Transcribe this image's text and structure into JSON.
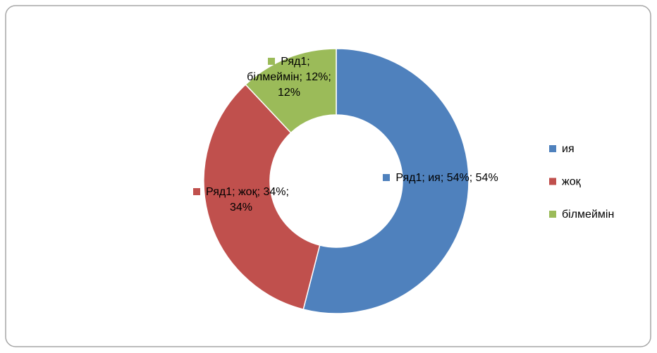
{
  "chart_data": {
    "type": "donut",
    "series_name": "Ряд1",
    "categories": [
      "ия",
      "жоқ",
      "білмеймін"
    ],
    "values": [
      54,
      34,
      12
    ],
    "value_labels": [
      "Ряд1; ия; 54%; 54%",
      "Ряд1; жоқ; 34%; 34%",
      "Ряд1; білмеймін; 12%; 12%"
    ],
    "colors": [
      "#4f81bd",
      "#c0504d",
      "#9bbb59"
    ],
    "legend": "right"
  }
}
